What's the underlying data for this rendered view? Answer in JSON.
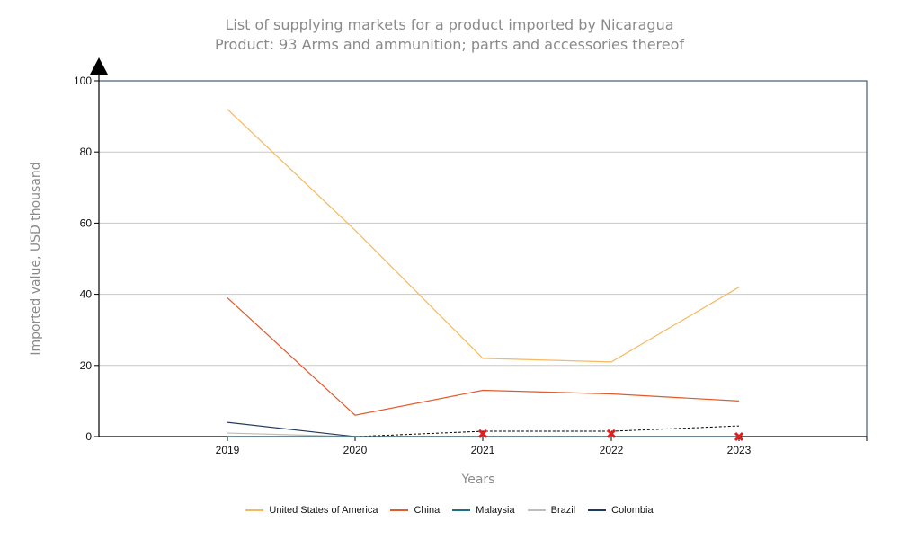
{
  "chart_data": {
    "type": "line",
    "title": "List of supplying markets for a product imported by Nicaragua",
    "subtitle": "Product: 93 Arms and ammunition; parts and accessories thereof",
    "xlabel": "Years",
    "ylabel": "Imported value, USD thousand",
    "categories": [
      "2019",
      "2020",
      "2021",
      "2022",
      "2023"
    ],
    "ylim": [
      0,
      100
    ],
    "yticks": [
      0,
      20,
      40,
      60,
      80,
      100
    ],
    "grid": true,
    "legend_position": "bottom",
    "series": [
      {
        "name": "United States of America",
        "color": "#f5b961",
        "values": [
          92,
          58,
          22,
          21,
          42
        ],
        "style": "solid"
      },
      {
        "name": "China",
        "color": "#e05a2b",
        "values": [
          39,
          6,
          13,
          12,
          10
        ],
        "style": "solid"
      },
      {
        "name": "Malaysia",
        "color": "#1f6f8b",
        "values": [
          0,
          0,
          0,
          0,
          0
        ],
        "style": "solid"
      },
      {
        "name": "Brazil",
        "color": "#bdbdbd",
        "values": [
          1,
          0,
          0,
          0,
          0
        ],
        "style": "solid"
      },
      {
        "name": "Colombia",
        "color": "#1f3a5f",
        "values": [
          4,
          0,
          null,
          null,
          null
        ],
        "style": "solid"
      }
    ],
    "dashed_line": {
      "color": "#000000",
      "values": [
        null,
        0,
        1.5,
        1.5,
        3
      ]
    },
    "markers": {
      "color": "#e02020",
      "points": [
        {
          "x": "2021",
          "y": 0.8
        },
        {
          "x": "2022",
          "y": 0.8
        },
        {
          "x": "2023",
          "y": 0
        }
      ]
    }
  }
}
